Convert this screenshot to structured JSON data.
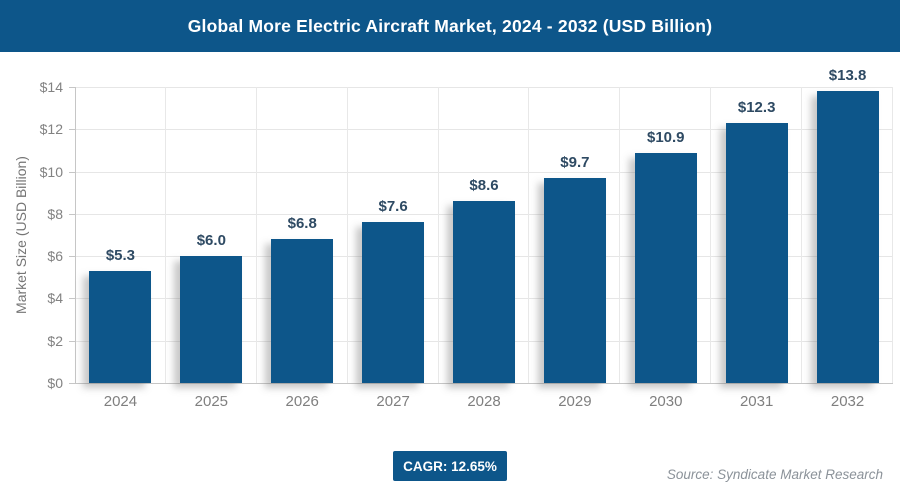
{
  "header": {
    "title": "Global More Electric Aircraft Market, 2024 - 2032 (USD Billion)",
    "bg_color": "#0d568a",
    "text_color": "#ffffff"
  },
  "chart_data": {
    "type": "bar",
    "title": "Global More Electric Aircraft Market, 2024 - 2032 (USD Billion)",
    "categories": [
      "2024",
      "2025",
      "2026",
      "2027",
      "2028",
      "2029",
      "2030",
      "2031",
      "2032"
    ],
    "values": [
      5.3,
      6.0,
      6.8,
      7.6,
      8.6,
      9.7,
      10.9,
      12.3,
      13.8
    ],
    "value_labels": [
      "$5.3",
      "$6.0",
      "$6.8",
      "$7.6",
      "$8.6",
      "$9.7",
      "$10.9",
      "$12.3",
      "$13.8"
    ],
    "xlabel": "",
    "ylabel": "Market Size (USD Billion)",
    "ylim": [
      0,
      14
    ],
    "ytick_step": 2,
    "ytick_labels": [
      "$0",
      "$2",
      "$4",
      "$6",
      "$8",
      "$10",
      "$12",
      "$14"
    ],
    "grid": true,
    "legend_position": "none",
    "bar_color": "#0d568a",
    "value_label_color": "#2e4a63",
    "axis_text_color": "#828282",
    "gridline_color": "#e6e6e6",
    "axis_line_color": "#c6c6c6"
  },
  "footer": {
    "cagr_label": "CAGR: 12.65%",
    "source_label": "Source: Syndicate Market Research"
  }
}
